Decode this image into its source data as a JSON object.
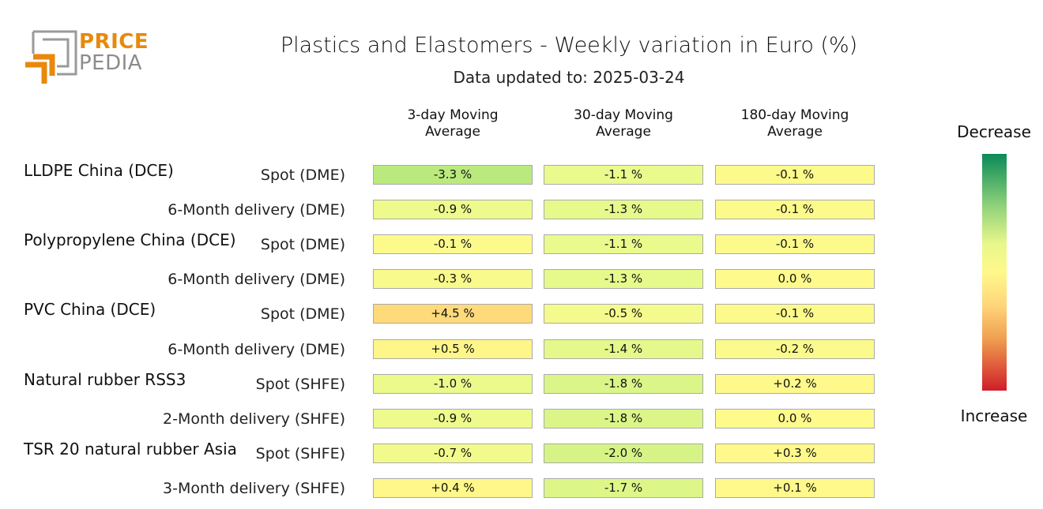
{
  "logo": {
    "line1": "PRICE",
    "line2": "PEDIA"
  },
  "chart_data": {
    "type": "table",
    "title": "Plastics and Elastomers - Weekly variation in Euro (%)",
    "subtitle": "Data updated to: 2025-03-24",
    "columns": [
      "3-day Moving Average",
      "30-day Moving Average",
      "180-day Moving Average"
    ],
    "legend": {
      "top": "Decrease",
      "bottom": "Increase"
    },
    "groups": [
      {
        "name": "LLDPE China (DCE)",
        "rows": [
          {
            "label": "Spot (DME)",
            "values": [
              -3.3,
              -1.1,
              -0.1
            ],
            "display": [
              "-3.3 %",
              "-1.1 %",
              "-0.1 %"
            ]
          },
          {
            "label": "6-Month delivery (DME)",
            "values": [
              -0.9,
              -1.3,
              -0.1
            ],
            "display": [
              "-0.9 %",
              "-1.3 %",
              "-0.1 %"
            ]
          }
        ]
      },
      {
        "name": "Polypropylene China (DCE)",
        "rows": [
          {
            "label": "Spot (DME)",
            "values": [
              -0.1,
              -1.1,
              -0.1
            ],
            "display": [
              "-0.1 %",
              "-1.1 %",
              "-0.1 %"
            ]
          },
          {
            "label": "6-Month delivery (DME)",
            "values": [
              -0.3,
              -1.3,
              0.0
            ],
            "display": [
              "-0.3 %",
              "-1.3 %",
              "0.0 %"
            ]
          }
        ]
      },
      {
        "name": "PVC China (DCE)",
        "rows": [
          {
            "label": "Spot (DME)",
            "values": [
              4.5,
              -0.5,
              -0.1
            ],
            "display": [
              "+4.5 %",
              "-0.5 %",
              "-0.1 %"
            ]
          },
          {
            "label": "6-Month delivery (DME)",
            "values": [
              0.5,
              -1.4,
              -0.2
            ],
            "display": [
              "+0.5 %",
              "-1.4 %",
              "-0.2 %"
            ]
          }
        ]
      },
      {
        "name": "Natural rubber RSS3",
        "rows": [
          {
            "label": "Spot (SHFE)",
            "values": [
              -1.0,
              -1.8,
              0.2
            ],
            "display": [
              "-1.0 %",
              "-1.8 %",
              "+0.2 %"
            ]
          },
          {
            "label": "2-Month delivery (SHFE)",
            "values": [
              -0.9,
              -1.8,
              0.0
            ],
            "display": [
              "-0.9 %",
              "-1.8 %",
              "0.0 %"
            ]
          }
        ]
      },
      {
        "name": "TSR 20 natural rubber Asia",
        "rows": [
          {
            "label": "Spot (SHFE)",
            "values": [
              -0.7,
              -2.0,
              0.3
            ],
            "display": [
              "-0.7 %",
              "-2.0 %",
              "+0.3 %"
            ]
          },
          {
            "label": "3-Month delivery (SHFE)",
            "values": [
              0.4,
              -1.7,
              0.1
            ],
            "display": [
              "+0.4 %",
              "-1.7 %",
              "+0.1 %"
            ]
          }
        ]
      }
    ]
  }
}
